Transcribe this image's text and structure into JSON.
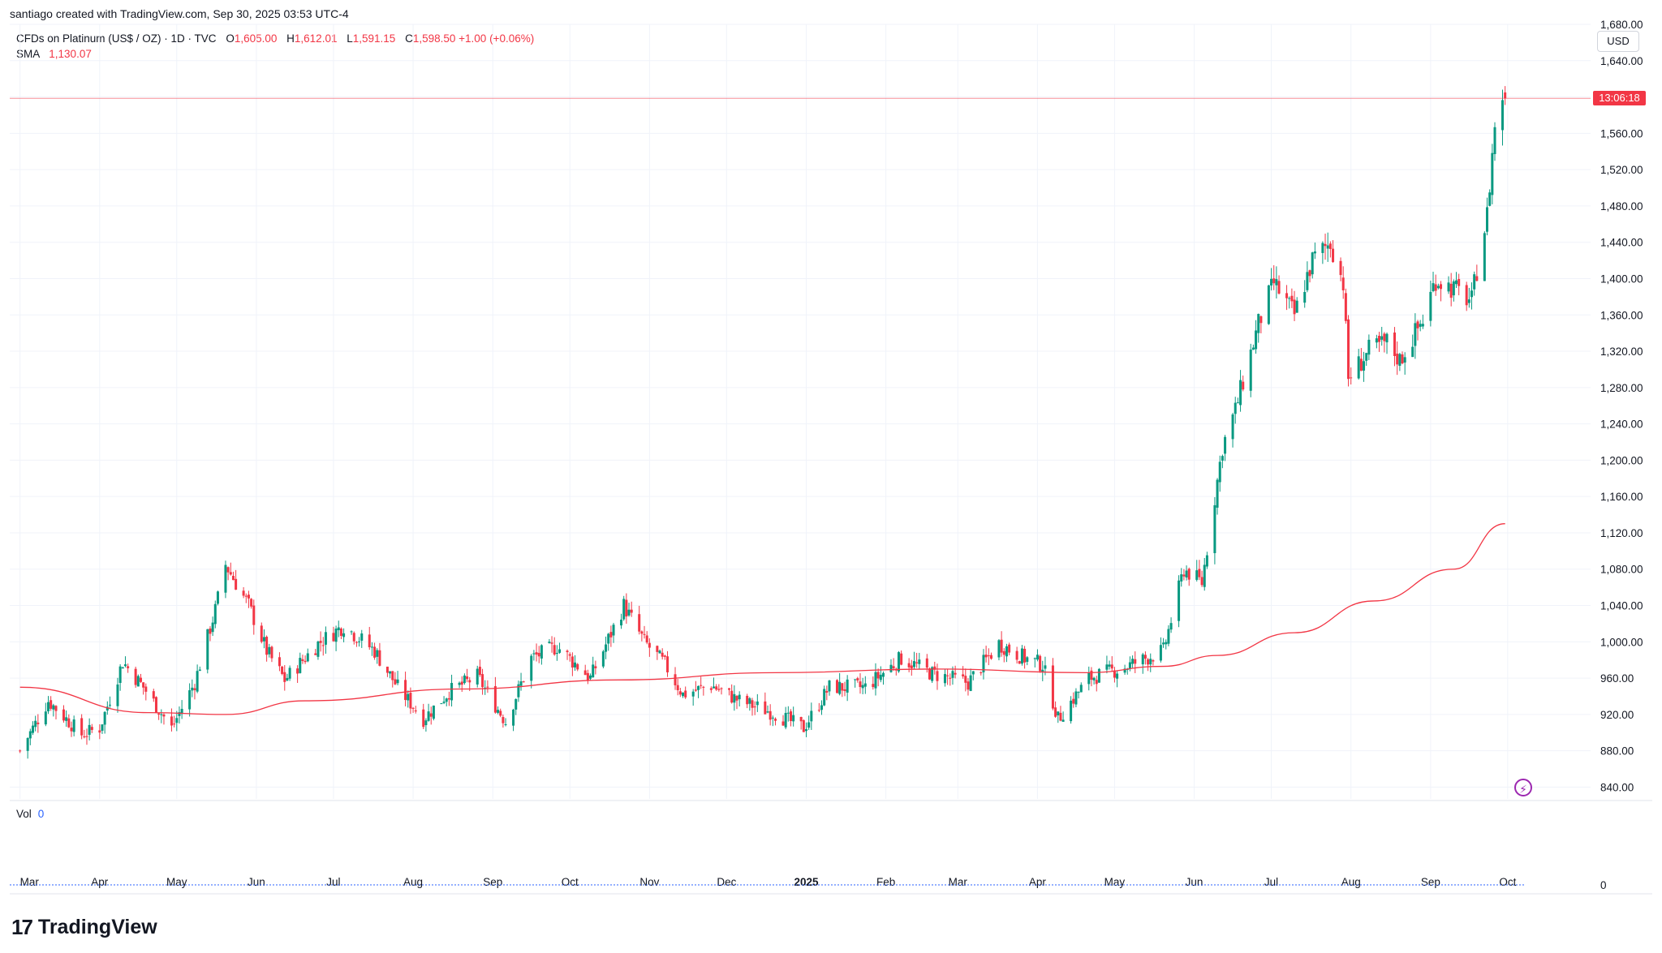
{
  "credit": "santiago created with TradingView.com, Sep 30, 2025 03:53 UTC-4",
  "legend": {
    "symbol": "CFDs on Platinum (US$ / OZ) · 1D · TVC",
    "o_label": "O",
    "o_value": "1,605.00",
    "h_label": "H",
    "h_value": "1,612.01",
    "l_label": "L",
    "l_value": "1,591.15",
    "c_label": "C",
    "c_value": "1,598.50",
    "change": "+1.00 (+0.06%)",
    "sma_label": "SMA",
    "sma_value": "1,130.07"
  },
  "currency_button": "USD",
  "countdown": "13:06:18",
  "volume": {
    "label": "Vol",
    "value": "0",
    "axis_label": "0"
  },
  "brand": "TradingView",
  "colors": {
    "up": "#089981",
    "down": "#f23645",
    "sma": "#f23645",
    "grid": "#f0f3fa"
  },
  "chart_data": {
    "type": "candlestick",
    "symbol": "CFDs on Platinum (US$ / OZ)",
    "interval": "1D",
    "y_axis": {
      "ticks": [
        "840.00",
        "880.00",
        "920.00",
        "960.00",
        "1,000.00",
        "1,040.00",
        "1,080.00",
        "1,120.00",
        "1,160.00",
        "1,200.00",
        "1,240.00",
        "1,280.00",
        "1,320.00",
        "1,360.00",
        "1,400.00",
        "1,440.00",
        "1,480.00",
        "1,520.00",
        "1,560.00",
        "1,600.00",
        "1,640.00",
        "1,680.00"
      ],
      "range": [
        827,
        1680
      ],
      "position": "right"
    },
    "x_axis": {
      "labels": [
        "Mar",
        "Apr",
        "May",
        "Jun",
        "Jul",
        "Aug",
        "Sep",
        "Oct",
        "Nov",
        "Dec",
        "2025",
        "Feb",
        "Mar",
        "Apr",
        "May",
        "Jun",
        "Jul",
        "Aug",
        "Sep",
        "Oct"
      ]
    },
    "anchors": [
      {
        "date": "2024-03-01",
        "close": 880
      },
      {
        "date": "2024-03-12",
        "close": 935
      },
      {
        "date": "2024-03-25",
        "close": 898
      },
      {
        "date": "2024-04-01",
        "close": 905
      },
      {
        "date": "2024-04-10",
        "close": 978
      },
      {
        "date": "2024-04-18",
        "close": 950
      },
      {
        "date": "2024-04-29",
        "close": 905
      },
      {
        "date": "2024-05-08",
        "close": 955
      },
      {
        "date": "2024-05-16",
        "close": 1035
      },
      {
        "date": "2024-05-20",
        "close": 1085
      },
      {
        "date": "2024-05-29",
        "close": 1040
      },
      {
        "date": "2024-06-05",
        "close": 990
      },
      {
        "date": "2024-06-12",
        "close": 958
      },
      {
        "date": "2024-06-25",
        "close": 998
      },
      {
        "date": "2024-07-05",
        "close": 1018
      },
      {
        "date": "2024-07-17",
        "close": 990
      },
      {
        "date": "2024-07-26",
        "close": 950
      },
      {
        "date": "2024-08-05",
        "close": 915
      },
      {
        "date": "2024-08-15",
        "close": 945
      },
      {
        "date": "2024-08-26",
        "close": 962
      },
      {
        "date": "2024-09-06",
        "close": 912
      },
      {
        "date": "2024-09-16",
        "close": 982
      },
      {
        "date": "2024-09-26",
        "close": 995
      },
      {
        "date": "2024-10-09",
        "close": 960
      },
      {
        "date": "2024-10-22",
        "close": 1040
      },
      {
        "date": "2024-10-30",
        "close": 1000
      },
      {
        "date": "2024-11-07",
        "close": 975
      },
      {
        "date": "2024-11-14",
        "close": 942
      },
      {
        "date": "2024-11-25",
        "close": 952
      },
      {
        "date": "2024-12-06",
        "close": 935
      },
      {
        "date": "2024-12-19",
        "close": 922
      },
      {
        "date": "2024-12-31",
        "close": 905
      },
      {
        "date": "2025-01-10",
        "close": 950
      },
      {
        "date": "2025-01-24",
        "close": 950
      },
      {
        "date": "2025-02-07",
        "close": 982
      },
      {
        "date": "2025-02-19",
        "close": 965
      },
      {
        "date": "2025-03-05",
        "close": 955
      },
      {
        "date": "2025-03-17",
        "close": 998
      },
      {
        "date": "2025-03-27",
        "close": 982
      },
      {
        "date": "2025-04-03",
        "close": 975
      },
      {
        "date": "2025-04-09",
        "close": 915
      },
      {
        "date": "2025-04-21",
        "close": 960
      },
      {
        "date": "2025-05-05",
        "close": 972
      },
      {
        "date": "2025-05-20",
        "close": 990
      },
      {
        "date": "2025-05-28",
        "close": 1080
      },
      {
        "date": "2025-06-04",
        "close": 1065
      },
      {
        "date": "2025-06-12",
        "close": 1215
      },
      {
        "date": "2025-06-17",
        "close": 1255
      },
      {
        "date": "2025-06-26",
        "close": 1350
      },
      {
        "date": "2025-07-02",
        "close": 1395
      },
      {
        "date": "2025-07-10",
        "close": 1360
      },
      {
        "date": "2025-07-17",
        "close": 1420
      },
      {
        "date": "2025-07-24",
        "close": 1440
      },
      {
        "date": "2025-07-29",
        "close": 1395
      },
      {
        "date": "2025-07-31",
        "close": 1290
      },
      {
        "date": "2025-08-08",
        "close": 1320
      },
      {
        "date": "2025-08-15",
        "close": 1330
      },
      {
        "date": "2025-08-20",
        "close": 1310
      },
      {
        "date": "2025-08-29",
        "close": 1355
      },
      {
        "date": "2025-09-03",
        "close": 1400
      },
      {
        "date": "2025-09-12",
        "close": 1385
      },
      {
        "date": "2025-09-17",
        "close": 1375
      },
      {
        "date": "2025-09-19",
        "close": 1410
      },
      {
        "date": "2025-09-23",
        "close": 1470
      },
      {
        "date": "2025-09-26",
        "close": 1570
      },
      {
        "date": "2025-09-30",
        "close": 1598.5
      }
    ],
    "sma": [
      {
        "date": "2024-03-01",
        "value": 950
      },
      {
        "date": "2024-04-20",
        "value": 922
      },
      {
        "date": "2024-05-20",
        "value": 920
      },
      {
        "date": "2024-06-20",
        "value": 935
      },
      {
        "date": "2024-08-20",
        "value": 948
      },
      {
        "date": "2024-10-20",
        "value": 958
      },
      {
        "date": "2024-12-20",
        "value": 966
      },
      {
        "date": "2025-02-20",
        "value": 970
      },
      {
        "date": "2025-04-20",
        "value": 966
      },
      {
        "date": "2025-05-20",
        "value": 973
      },
      {
        "date": "2025-06-10",
        "value": 985
      },
      {
        "date": "2025-07-10",
        "value": 1010
      },
      {
        "date": "2025-08-10",
        "value": 1045
      },
      {
        "date": "2025-09-10",
        "value": 1080
      },
      {
        "date": "2025-09-30",
        "value": 1130.07
      }
    ],
    "last_price": 1598.5,
    "volume_value": 0
  }
}
